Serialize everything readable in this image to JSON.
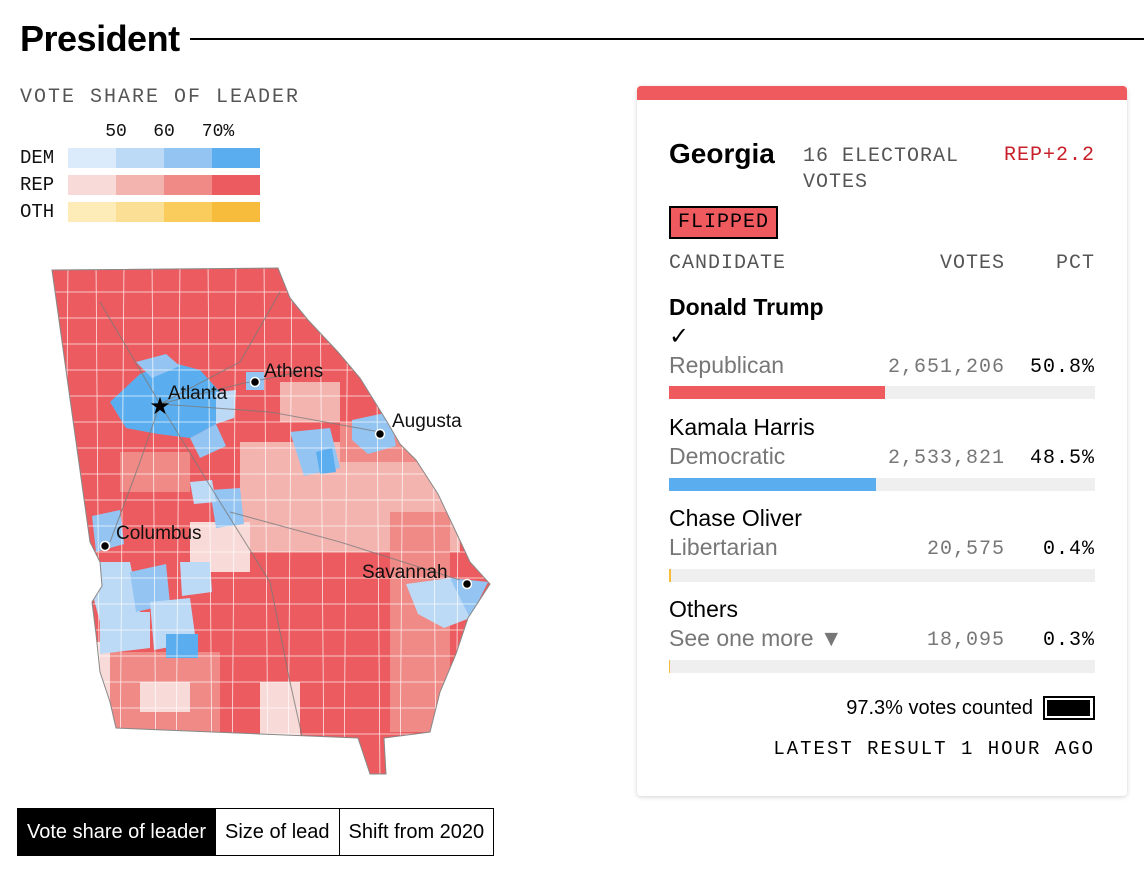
{
  "header": {
    "title": "President"
  },
  "legend": {
    "heading": "VOTE SHARE OF LEADER",
    "ticks": [
      "50",
      "60",
      "70%"
    ],
    "rows": [
      {
        "label": "DEM",
        "colors": [
          "#dcebfb",
          "#bcd9f6",
          "#93c4f2",
          "#5aaeef"
        ]
      },
      {
        "label": "REP",
        "colors": [
          "#f8dbd8",
          "#f3b4b0",
          "#ef8a86",
          "#ec5b5f"
        ]
      },
      {
        "label": "OTH",
        "colors": [
          "#fdecb8",
          "#fbdf94",
          "#f9cc5c",
          "#f8bc3d"
        ]
      }
    ]
  },
  "map": {
    "cities": [
      {
        "name": "Atlanta",
        "type": "capital"
      },
      {
        "name": "Athens",
        "type": "city"
      },
      {
        "name": "Augusta",
        "type": "city"
      },
      {
        "name": "Columbus",
        "type": "city"
      },
      {
        "name": "Savannah",
        "type": "city"
      }
    ]
  },
  "map_toggle": {
    "options": [
      "Vote share of leader",
      "Size of lead",
      "Shift from 2020"
    ],
    "selected": "Vote share of leader"
  },
  "result_card": {
    "state": "Georgia",
    "electoral_votes": "16 ELECTORAL VOTES",
    "margin": "REP+2.2",
    "badge": "FLIPPED",
    "columns": {
      "candidate": "CANDIDATE",
      "votes": "VOTES",
      "pct": "PCT"
    },
    "candidates": [
      {
        "name": "Donald Trump",
        "party": "Republican",
        "votes": "2,651,206",
        "pct": "50.8%",
        "share": 50.8,
        "color": "#ef5a5f",
        "winner": true
      },
      {
        "name": "Kamala Harris",
        "party": "Democratic",
        "votes": "2,533,821",
        "pct": "48.5%",
        "share": 48.5,
        "color": "#5aaeef",
        "winner": false
      },
      {
        "name": "Chase Oliver",
        "party": "Libertarian",
        "votes": "20,575",
        "pct": "0.4%",
        "share": 0.4,
        "color": "#f8bc3d",
        "winner": false
      },
      {
        "name": "Others",
        "party": "See one more ▼",
        "votes": "18,095",
        "pct": "0.3%",
        "share": 0.3,
        "color": "#f8bc3d",
        "winner": false
      }
    ],
    "counted_label": "97.3% votes counted",
    "counted_fraction": 0.973,
    "latest": "LATEST RESULT 1 HOUR AGO"
  }
}
